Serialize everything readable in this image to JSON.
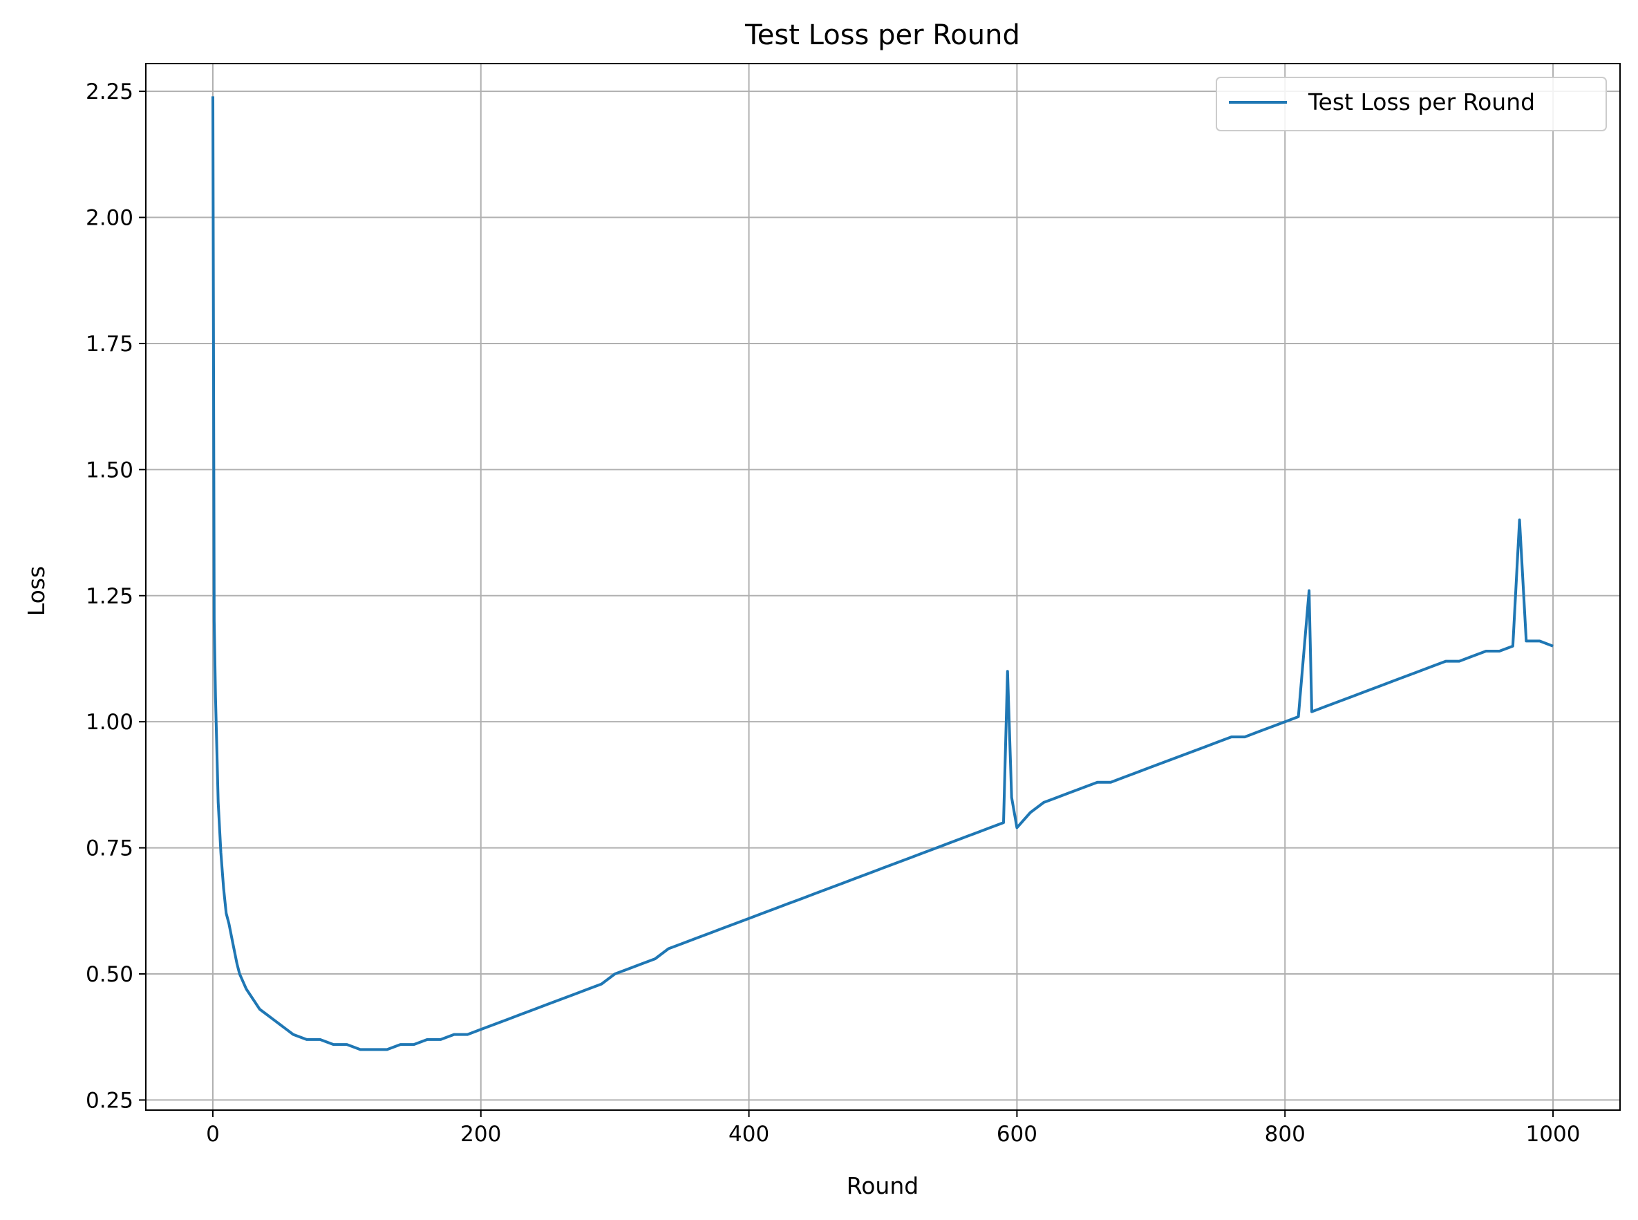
{
  "chart_data": {
    "type": "line",
    "title": "Test Loss per Round",
    "xlabel": "Round",
    "ylabel": "Loss",
    "xlim": [
      -50,
      1050
    ],
    "ylim": [
      0.23,
      2.305
    ],
    "xticks": [
      0,
      200,
      400,
      600,
      800,
      1000
    ],
    "xtick_labels": [
      "0",
      "200",
      "400",
      "600",
      "800",
      "1000"
    ],
    "yticks": [
      0.25,
      0.5,
      0.75,
      1.0,
      1.25,
      1.5,
      1.75,
      2.0,
      2.25
    ],
    "ytick_labels": [
      "0.25",
      "0.50",
      "0.75",
      "1.00",
      "1.25",
      "1.50",
      "1.75",
      "2.00",
      "2.25"
    ],
    "grid": true,
    "legend_position": "top-right",
    "series": [
      {
        "name": "Test Loss per Round",
        "color": "#1f77b4",
        "x": [
          0,
          1,
          2,
          4,
          6,
          8,
          10,
          12,
          15,
          18,
          20,
          25,
          30,
          35,
          40,
          45,
          50,
          55,
          60,
          70,
          80,
          90,
          100,
          110,
          120,
          130,
          140,
          150,
          160,
          170,
          180,
          190,
          200,
          210,
          220,
          230,
          240,
          250,
          260,
          270,
          280,
          290,
          300,
          310,
          320,
          330,
          340,
          350,
          360,
          370,
          380,
          390,
          400,
          410,
          420,
          430,
          440,
          450,
          460,
          470,
          480,
          490,
          500,
          510,
          520,
          530,
          540,
          550,
          560,
          570,
          580,
          590,
          593,
          596,
          600,
          610,
          620,
          630,
          640,
          650,
          660,
          670,
          680,
          690,
          700,
          710,
          720,
          730,
          740,
          750,
          760,
          770,
          780,
          790,
          800,
          810,
          818,
          820,
          830,
          840,
          850,
          860,
          870,
          880,
          890,
          900,
          910,
          920,
          930,
          940,
          950,
          960,
          970,
          975,
          980,
          990,
          1000
        ],
        "y": [
          2.24,
          1.2,
          1.05,
          0.84,
          0.74,
          0.67,
          0.62,
          0.6,
          0.56,
          0.52,
          0.5,
          0.47,
          0.45,
          0.43,
          0.42,
          0.41,
          0.4,
          0.39,
          0.38,
          0.37,
          0.37,
          0.36,
          0.36,
          0.35,
          0.35,
          0.35,
          0.36,
          0.36,
          0.37,
          0.37,
          0.38,
          0.38,
          0.39,
          0.4,
          0.41,
          0.42,
          0.43,
          0.44,
          0.45,
          0.46,
          0.47,
          0.48,
          0.5,
          0.51,
          0.52,
          0.53,
          0.55,
          0.56,
          0.57,
          0.58,
          0.59,
          0.6,
          0.61,
          0.62,
          0.63,
          0.64,
          0.65,
          0.66,
          0.67,
          0.68,
          0.69,
          0.7,
          0.71,
          0.72,
          0.73,
          0.74,
          0.75,
          0.76,
          0.77,
          0.78,
          0.79,
          0.8,
          1.1,
          0.85,
          0.79,
          0.82,
          0.84,
          0.85,
          0.86,
          0.87,
          0.88,
          0.88,
          0.89,
          0.9,
          0.91,
          0.92,
          0.93,
          0.94,
          0.95,
          0.96,
          0.97,
          0.97,
          0.98,
          0.99,
          1.0,
          1.01,
          1.26,
          1.02,
          1.03,
          1.04,
          1.05,
          1.06,
          1.07,
          1.08,
          1.09,
          1.1,
          1.11,
          1.12,
          1.12,
          1.13,
          1.14,
          1.14,
          1.15,
          1.4,
          1.16,
          1.16,
          1.15
        ]
      }
    ]
  }
}
